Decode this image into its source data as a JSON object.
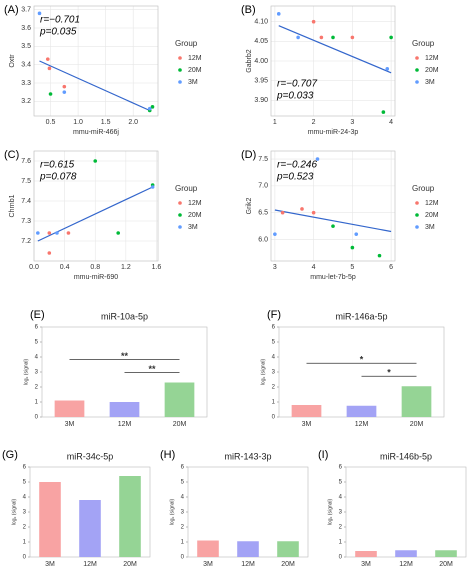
{
  "chart_data": [
    {
      "type": "scatter",
      "panel": "(A)",
      "xlabel": "mmu-miR-466j",
      "ylabel": "Oxtr",
      "legend_title": "Group",
      "annotations": [
        "r=−0.701",
        "p=0.035"
      ],
      "annotation_corner": "top-left",
      "xlim": [
        0.2,
        2.45
      ],
      "ylim": [
        3.12,
        3.72
      ],
      "xticks": [
        0.5,
        {
          "value": 1,
          "label": "1.0"
        },
        1.5,
        {
          "value": 2,
          "label": "2.0"
        }
      ],
      "yticks": [
        3.2,
        3.3,
        3.4,
        3.5,
        3.6,
        3.7
      ],
      "series": [
        {
          "name": "12M",
          "color": "#f8766d",
          "x": [
            0.45,
            0.48,
            0.75
          ],
          "values": [
            3.43,
            3.38,
            3.28
          ]
        },
        {
          "name": "20M",
          "color": "#00ba38",
          "x": [
            0.5,
            2.3,
            2.35
          ],
          "values": [
            3.24,
            3.15,
            3.17
          ]
        },
        {
          "name": "3M",
          "color": "#619cff",
          "x": [
            0.3,
            0.75,
            2.3
          ],
          "values": [
            3.68,
            3.25,
            3.16
          ]
        }
      ],
      "trend_line": {
        "x": [
          0.3,
          2.3
        ],
        "values": [
          3.42,
          3.15
        ]
      },
      "grid": true
    },
    {
      "type": "scatter",
      "panel": "(B)",
      "xlabel": "mmu-miR-24-3p",
      "ylabel": "Gabrb2",
      "legend_title": "Group",
      "annotations": [
        "r=−0.707",
        "p=0.033"
      ],
      "annotation_corner": "bottom-left",
      "xlim": [
        0.9,
        4.1
      ],
      "ylim": [
        3.86,
        4.14
      ],
      "xticks": [
        1,
        2,
        3,
        4
      ],
      "yticks": [
        {
          "value": 3.9,
          "label": "3.90"
        },
        3.95,
        {
          "value": 4,
          "label": "4.00"
        },
        4.05,
        {
          "value": 4.1,
          "label": "4.10"
        }
      ],
      "series": [
        {
          "name": "12M",
          "color": "#f8766d",
          "x": [
            2.0,
            2.2,
            3.0
          ],
          "values": [
            4.1,
            4.06,
            4.06
          ]
        },
        {
          "name": "20M",
          "color": "#00ba38",
          "x": [
            3.8,
            4.0,
            2.5
          ],
          "values": [
            3.87,
            4.06,
            4.06
          ]
        },
        {
          "name": "3M",
          "color": "#619cff",
          "x": [
            1.1,
            1.6,
            3.9
          ],
          "values": [
            4.12,
            4.06,
            3.98
          ]
        }
      ],
      "trend_line": {
        "x": [
          1.1,
          4
        ],
        "values": [
          4.09,
          3.97
        ]
      },
      "grid": true
    },
    {
      "type": "scatter",
      "panel": "(C)",
      "xlabel": "mmu-miR-690",
      "ylabel": "Chrnb1",
      "legend_title": "Group",
      "annotations": [
        "r=0.615",
        "p=0.078"
      ],
      "annotation_corner": "top-left",
      "xlim": [
        0,
        1.62
      ],
      "ylim": [
        7.1,
        7.65
      ],
      "xticks": [
        {
          "value": 0,
          "label": "0.0"
        },
        0.4,
        0.8,
        1.2,
        1.6
      ],
      "yticks": [
        7.2,
        7.3,
        7.4,
        7.5,
        7.6
      ],
      "series": [
        {
          "name": "12M",
          "color": "#f8766d",
          "x": [
            0.2,
            0.2,
            0.45
          ],
          "values": [
            7.14,
            7.24,
            7.24
          ]
        },
        {
          "name": "20M",
          "color": "#00ba38",
          "x": [
            0.8,
            1.1,
            1.55
          ],
          "values": [
            7.6,
            7.24,
            7.48
          ]
        },
        {
          "name": "3M",
          "color": "#619cff",
          "x": [
            0.05,
            0.3,
            1.55
          ],
          "values": [
            7.24,
            7.24,
            7.47
          ]
        }
      ],
      "trend_line": {
        "x": [
          0.05,
          1.55
        ],
        "values": [
          7.2,
          7.47
        ]
      },
      "grid": true
    },
    {
      "type": "scatter",
      "panel": "(D)",
      "xlabel": "mmu-let-7b-5p",
      "ylabel": "Grik2",
      "legend_title": "Group",
      "annotations": [
        "r=−0.246",
        "p=0.523"
      ],
      "annotation_corner": "top-left",
      "xlim": [
        2.9,
        6.1
      ],
      "ylim": [
        5.6,
        7.65
      ],
      "xticks": [
        3,
        4,
        5,
        6
      ],
      "yticks": [
        {
          "value": 6,
          "label": "6.0"
        },
        6.5,
        {
          "value": 7,
          "label": "7.0"
        },
        7.5
      ],
      "series": [
        {
          "name": "12M",
          "color": "#f8766d",
          "x": [
            3.2,
            3.7,
            4.0
          ],
          "values": [
            6.5,
            6.57,
            6.5
          ]
        },
        {
          "name": "20M",
          "color": "#00ba38",
          "x": [
            4.5,
            5.0,
            5.7
          ],
          "values": [
            6.25,
            5.85,
            5.7
          ]
        },
        {
          "name": "3M",
          "color": "#619cff",
          "x": [
            3.0,
            4.1,
            5.1
          ],
          "values": [
            6.1,
            7.5,
            6.1
          ]
        }
      ],
      "trend_line": {
        "x": [
          3,
          6
        ],
        "values": [
          6.55,
          6.15
        ]
      },
      "grid": true
    },
    {
      "type": "bar",
      "panel": "(E)",
      "title": "miR-10a-5p",
      "ylabel": "log₂ (signal)",
      "categories": [
        "3M",
        "12M",
        "20M"
      ],
      "values": [
        1.1,
        1.0,
        2.3
      ],
      "colors": [
        "#f8a3a3",
        "#a3a3f5",
        "#95d495"
      ],
      "ylim": [
        0,
        6
      ],
      "yticks": [
        0,
        1,
        2,
        3,
        4,
        5,
        6
      ],
      "significance": [
        {
          "text": "**",
          "between": [
            "3M",
            "20M"
          ]
        },
        {
          "text": "**",
          "between": [
            "12M",
            "20M"
          ]
        }
      ]
    },
    {
      "type": "bar",
      "panel": "(F)",
      "title": "miR-146a-5p",
      "ylabel": "log₂ (signal)",
      "categories": [
        "3M",
        "12M",
        "20M"
      ],
      "values": [
        0.8,
        0.75,
        2.05
      ],
      "colors": [
        "#f8a3a3",
        "#a3a3f5",
        "#95d495"
      ],
      "ylim": [
        0,
        6
      ],
      "yticks": [
        0,
        1,
        2,
        3,
        4,
        5,
        6
      ],
      "significance": [
        {
          "text": "*",
          "between": [
            "3M",
            "20M"
          ]
        },
        {
          "text": "*",
          "between": [
            "12M",
            "20M"
          ]
        }
      ]
    },
    {
      "type": "bar",
      "panel": "(G)",
      "title": "miR-34c-5p",
      "ylabel": "log₂ (signal)",
      "categories": [
        "3M",
        "12M",
        "20M"
      ],
      "values": [
        5.0,
        3.8,
        5.4
      ],
      "colors": [
        "#f8a3a3",
        "#a3a3f5",
        "#95d495"
      ],
      "ylim": [
        0,
        6
      ],
      "yticks": [
        0,
        1,
        2,
        3,
        4,
        5,
        6
      ]
    },
    {
      "type": "bar",
      "panel": "(H)",
      "title": "miR-143-3p",
      "ylabel": "log₂ (signal)",
      "categories": [
        "3M",
        "12M",
        "20M"
      ],
      "values": [
        1.1,
        1.05,
        1.05
      ],
      "colors": [
        "#f8a3a3",
        "#a3a3f5",
        "#95d495"
      ],
      "ylim": [
        0,
        6
      ],
      "yticks": [
        0,
        1,
        2,
        3,
        4,
        5,
        6
      ]
    },
    {
      "type": "bar",
      "panel": "(I)",
      "title": "miR-146b-5p",
      "ylabel": "log₂ (signal)",
      "categories": [
        "3M",
        "12M",
        "20M"
      ],
      "values": [
        0.4,
        0.45,
        0.45
      ],
      "colors": [
        "#f8a3a3",
        "#a3a3f5",
        "#95d495"
      ],
      "ylim": [
        0,
        6
      ],
      "yticks": [
        0,
        1,
        2,
        3,
        4,
        5,
        6
      ]
    }
  ]
}
